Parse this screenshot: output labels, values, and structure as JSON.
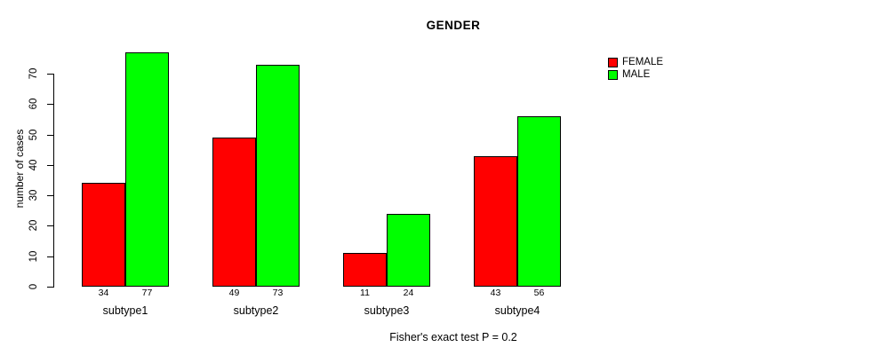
{
  "chart_data": {
    "type": "bar",
    "title": "GENDER",
    "categories": [
      "subtype1",
      "subtype2",
      "subtype3",
      "subtype4"
    ],
    "series": [
      {
        "name": "FEMALE",
        "color": "#ff0000",
        "values": [
          34,
          49,
          11,
          43
        ]
      },
      {
        "name": "MALE",
        "color": "#00ff00",
        "values": [
          77,
          73,
          24,
          56
        ]
      }
    ],
    "xlabel": "",
    "ylabel": "number of cases",
    "ylim": [
      0,
      70
    ],
    "yticks": [
      0,
      10,
      20,
      30,
      40,
      50,
      60,
      70
    ],
    "bar_value_labels": true,
    "grid": false,
    "legend_position": "top-right",
    "caption": "Fisher's exact test P = 0.2"
  }
}
